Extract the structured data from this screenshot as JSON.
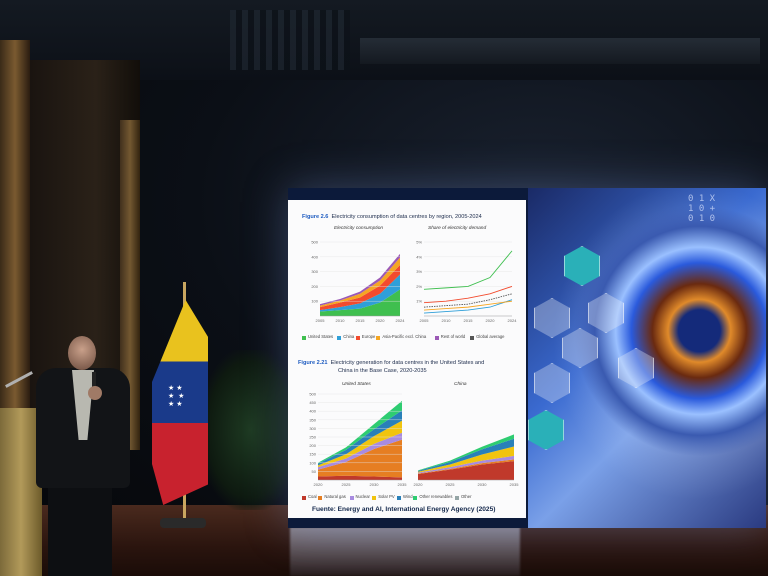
{
  "slide": {
    "fig1": {
      "number": "Figure 2.6",
      "title": "Electricity consumption of data centres by region, 2005-2024"
    },
    "fig1_left": {
      "title": "Electricity consumption",
      "unit": "TWh",
      "y_ticks": [
        "500",
        "400",
        "300",
        "200",
        "100"
      ],
      "x_ticks": [
        "2005",
        "2010",
        "2015",
        "2020",
        "2024"
      ]
    },
    "fig1_right": {
      "title": "Share of electricity demand",
      "y_ticks": [
        "5%",
        "4%",
        "3%",
        "2%",
        "1%"
      ],
      "x_ticks": [
        "2005",
        "2010",
        "2015",
        "2020",
        "2024"
      ]
    },
    "fig1_legend": [
      "United States",
      "China",
      "Europe",
      "Asia-Pacific excl. China",
      "Rest of world",
      "Global average"
    ],
    "fig2": {
      "number": "Figure 2.21",
      "title_line1": "Electricity generation for data centres in the United States and",
      "title_line2": "China in the Base Case, 2020-2035"
    },
    "fig2_left": {
      "title": "United States",
      "unit": "TWh",
      "y_ticks": [
        "500",
        "450",
        "400",
        "350",
        "300",
        "250",
        "200",
        "150",
        "100",
        "50"
      ],
      "x_ticks": [
        "2020",
        "2025",
        "2030",
        "2035"
      ]
    },
    "fig2_right": {
      "title": "China",
      "x_ticks": [
        "2020",
        "2025",
        "2030",
        "2035"
      ]
    },
    "fig2_legend": [
      "Coal",
      "Natural gas",
      "Nuclear",
      "Solar PV",
      "Wind",
      "Other renewables",
      "Other"
    ],
    "source": "Fuente: Energy and AI, International Energy Agency (2025)"
  },
  "colors": {
    "us": "#3fbf4f",
    "china": "#2f9fd8",
    "europe": "#f24b2e",
    "apac": "#f5a623",
    "row": "#9b59b6",
    "coal": "#c0392b",
    "gas": "#e67e22",
    "nuclear": "#a88be0",
    "solar": "#f1c40f",
    "wind": "#2980b9",
    "other_ren": "#2ecc71",
    "other": "#95a5a6"
  },
  "chart_data": [
    {
      "type": "area",
      "title": "Electricity consumption",
      "x": [
        2005,
        2010,
        2015,
        2020,
        2024
      ],
      "series": [
        {
          "name": "United States",
          "values": [
            30,
            40,
            50,
            90,
            180
          ]
        },
        {
          "name": "China",
          "values": [
            10,
            20,
            35,
            60,
            100
          ]
        },
        {
          "name": "Europe",
          "values": [
            20,
            30,
            40,
            55,
            65
          ]
        },
        {
          "name": "Asia-Pacific excl. China",
          "values": [
            10,
            15,
            25,
            35,
            50
          ]
        },
        {
          "name": "Rest of world",
          "values": [
            10,
            10,
            15,
            20,
            25
          ]
        }
      ],
      "ylim": [
        0,
        500
      ]
    },
    {
      "type": "line",
      "title": "Share of electricity demand",
      "x": [
        2005,
        2010,
        2015,
        2020,
        2024
      ],
      "series": [
        {
          "name": "United States",
          "values": [
            1.8,
            1.9,
            2.0,
            2.6,
            4.4
          ]
        },
        {
          "name": "China",
          "values": [
            0.2,
            0.3,
            0.4,
            0.6,
            1.1
          ]
        },
        {
          "name": "Europe",
          "values": [
            0.9,
            1.0,
            1.2,
            1.5,
            2.0
          ]
        },
        {
          "name": "Asia-Pacific excl. China",
          "values": [
            0.4,
            0.5,
            0.6,
            0.8,
            1.0
          ]
        },
        {
          "name": "Global average",
          "values": [
            0.6,
            0.7,
            0.8,
            1.1,
            1.5
          ]
        }
      ],
      "ylim": [
        0,
        5
      ]
    },
    {
      "type": "area",
      "title": "United States",
      "x": [
        2020,
        2025,
        2030,
        2035
      ],
      "series": [
        {
          "name": "Coal",
          "values": [
            20,
            25,
            20,
            15
          ]
        },
        {
          "name": "Natural gas",
          "values": [
            40,
            80,
            160,
            220
          ]
        },
        {
          "name": "Nuclear",
          "values": [
            15,
            20,
            30,
            40
          ]
        },
        {
          "name": "Solar PV",
          "values": [
            10,
            25,
            45,
            70
          ]
        },
        {
          "name": "Wind",
          "values": [
            10,
            25,
            40,
            60
          ]
        },
        {
          "name": "Other renewables",
          "values": [
            5,
            15,
            30,
            55
          ]
        }
      ],
      "ylim": [
        0,
        500
      ]
    },
    {
      "type": "area",
      "title": "China",
      "x": [
        2020,
        2025,
        2030,
        2035
      ],
      "series": [
        {
          "name": "Coal",
          "values": [
            35,
            60,
            90,
            110
          ]
        },
        {
          "name": "Natural gas",
          "values": [
            3,
            5,
            8,
            10
          ]
        },
        {
          "name": "Nuclear",
          "values": [
            5,
            10,
            15,
            20
          ]
        },
        {
          "name": "Solar PV",
          "values": [
            5,
            15,
            35,
            55
          ]
        },
        {
          "name": "Wind",
          "values": [
            5,
            15,
            30,
            45
          ]
        },
        {
          "name": "Other renewables",
          "values": [
            3,
            8,
            15,
            25
          ]
        }
      ],
      "ylim": [
        0,
        500
      ]
    }
  ]
}
